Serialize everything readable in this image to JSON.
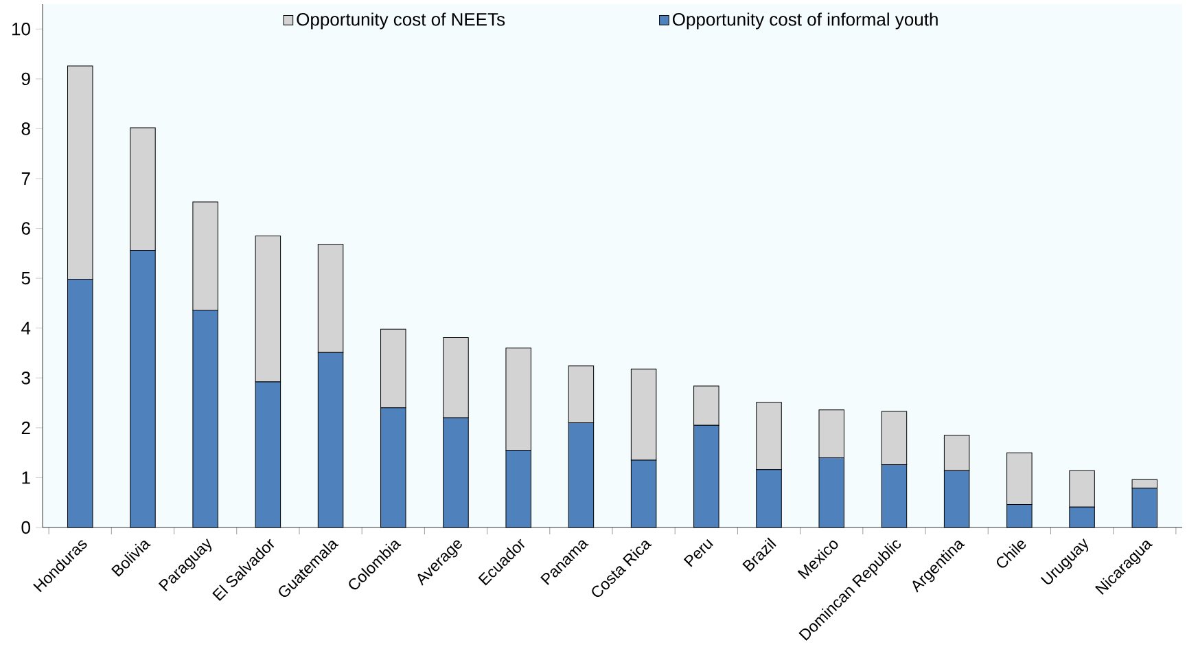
{
  "chart_data": {
    "type": "bar",
    "stacked": true,
    "categories": [
      "Honduras",
      "Bolivia",
      "Paraguay",
      "El Salvador",
      "Guatemala",
      "Colombia",
      "Average",
      "Ecuador",
      "Panama",
      "Costa Rica",
      "Peru",
      "Brazil",
      "Mexico",
      "Domincan Republic",
      "Argentina",
      "Chile",
      "Uruguay",
      "Nicaragua"
    ],
    "series": [
      {
        "name": "Opportunity cost of informal youth",
        "color": "#4f81bd",
        "values": [
          4.98,
          5.56,
          4.36,
          2.92,
          3.51,
          2.4,
          2.2,
          1.55,
          2.1,
          1.35,
          2.05,
          1.16,
          1.4,
          1.26,
          1.14,
          0.46,
          0.41,
          0.79
        ]
      },
      {
        "name": "Opportunity cost of NEETs",
        "color": "#d3d3d3",
        "values": [
          4.28,
          2.46,
          2.17,
          2.93,
          2.17,
          1.58,
          1.61,
          2.05,
          1.14,
          1.83,
          0.79,
          1.35,
          0.96,
          1.07,
          0.71,
          1.04,
          0.73,
          0.17
        ]
      }
    ],
    "ylim": [
      0,
      10.5
    ],
    "yticks": [
      0,
      1,
      2,
      3,
      4,
      5,
      6,
      7,
      8,
      9,
      10
    ],
    "legend": "top"
  }
}
